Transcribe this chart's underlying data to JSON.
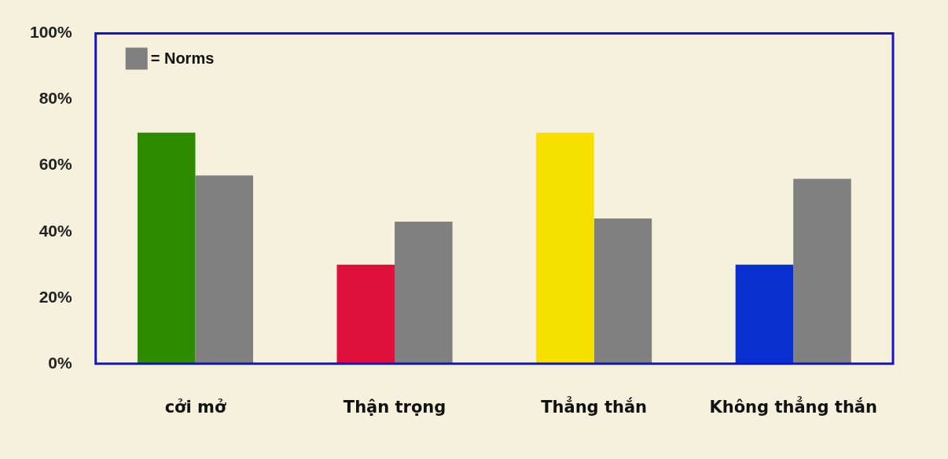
{
  "chart_data": {
    "type": "bar",
    "categories": [
      "cởi mở",
      "Thận trọng",
      "Thẳng thắn",
      "Không thẳng thắn"
    ],
    "series": [
      {
        "colors": [
          "#2e8b00",
          "#e0103c",
          "#f5e000",
          "#0a2fd0"
        ],
        "values": [
          70,
          30,
          70,
          30
        ]
      },
      {
        "name": "= Norms",
        "color": "#808080",
        "values": [
          57,
          43,
          44,
          56
        ]
      }
    ],
    "ylim": [
      0,
      100
    ],
    "yticks": [
      {
        "value": 0,
        "label": "0%"
      },
      {
        "value": 20,
        "label": "20%"
      },
      {
        "value": 40,
        "label": "40%"
      },
      {
        "value": 60,
        "label": "60%"
      },
      {
        "value": 80,
        "label": "80%"
      },
      {
        "value": 100,
        "label": "100%"
      }
    ],
    "grid": false,
    "legend": "top left"
  }
}
